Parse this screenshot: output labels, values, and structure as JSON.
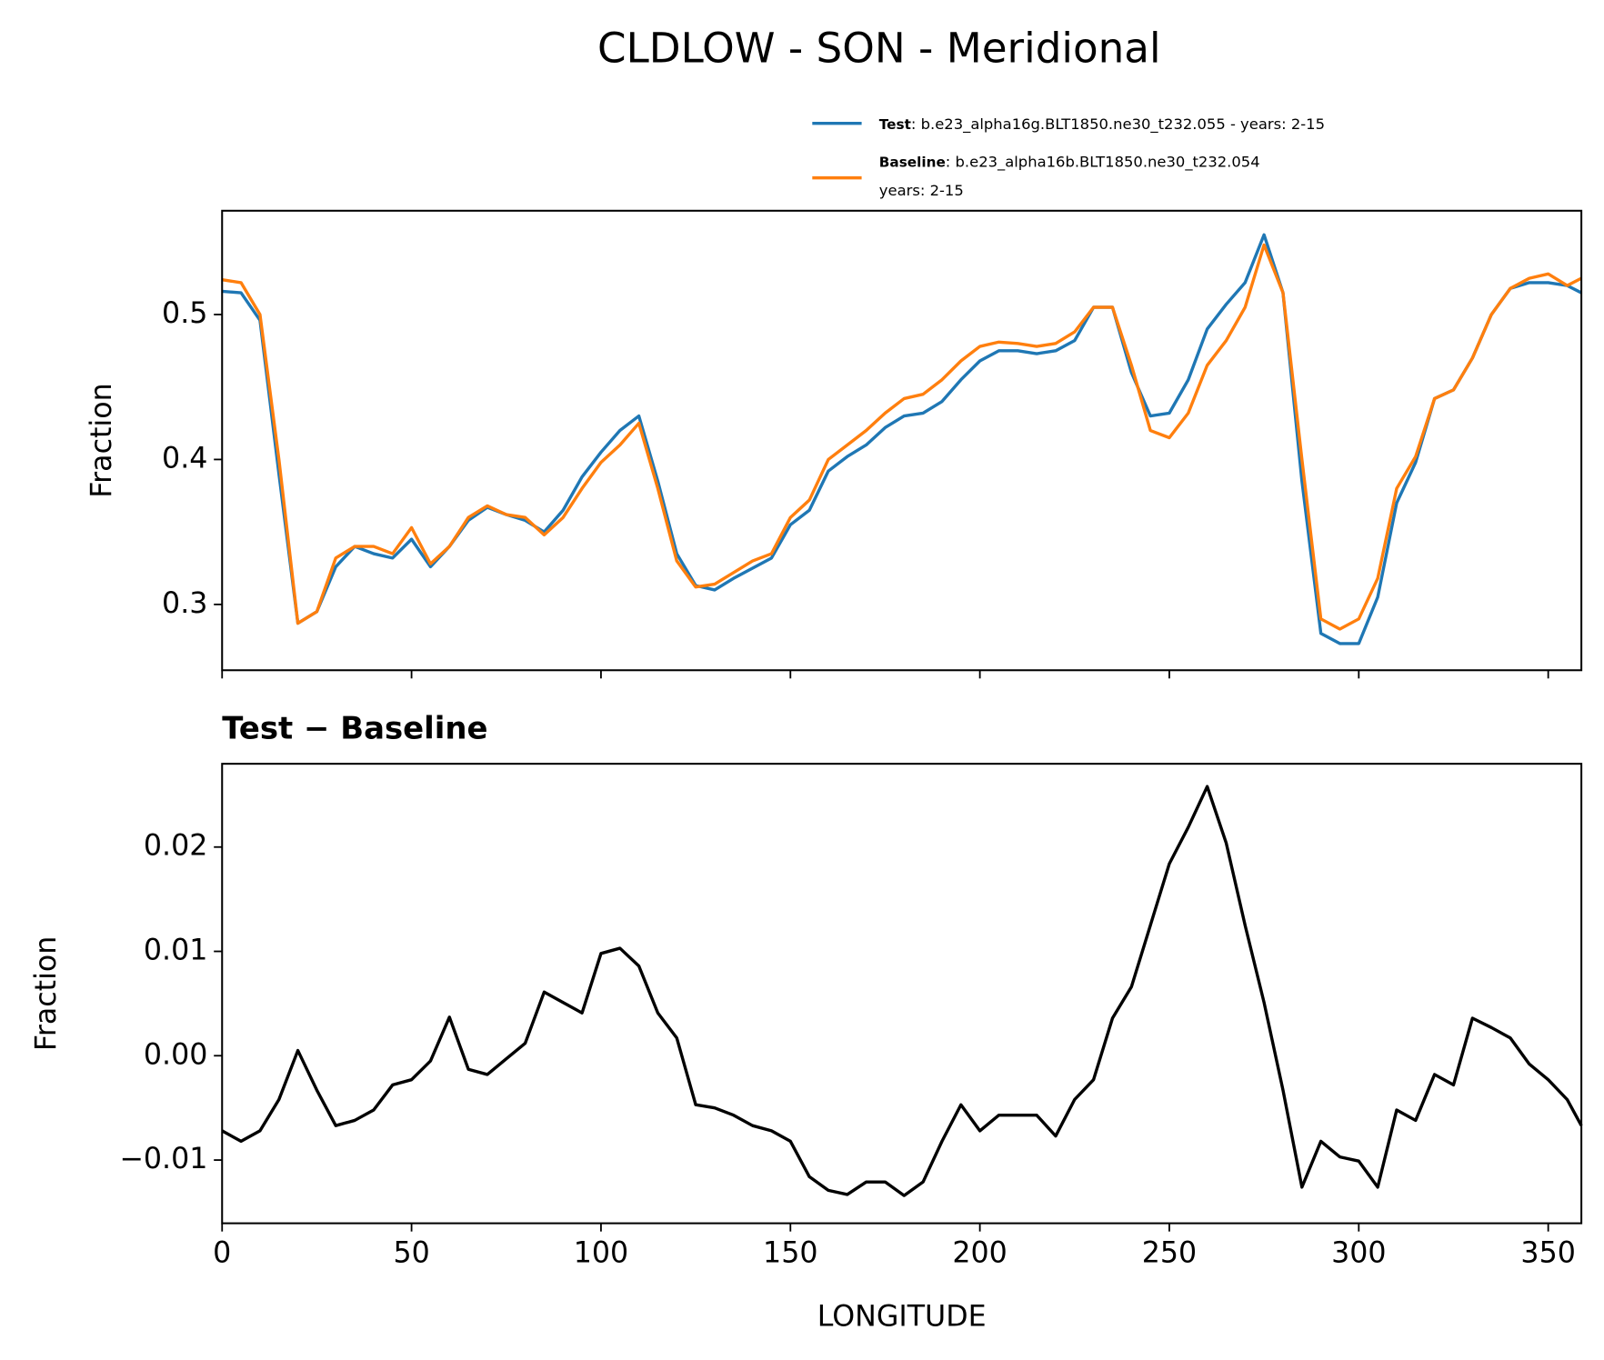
{
  "title": "CLDLOW - SON - Meridional",
  "chart_data": [
    {
      "type": "line",
      "ylabel": "Fraction",
      "x": [
        0,
        5,
        10,
        15,
        20,
        25,
        30,
        35,
        40,
        45,
        50,
        55,
        60,
        65,
        70,
        75,
        80,
        85,
        90,
        95,
        100,
        105,
        110,
        115,
        120,
        125,
        130,
        135,
        140,
        145,
        150,
        155,
        160,
        165,
        170,
        175,
        180,
        185,
        190,
        195,
        200,
        205,
        210,
        215,
        220,
        225,
        230,
        235,
        240,
        245,
        250,
        255,
        260,
        265,
        270,
        275,
        280,
        285,
        290,
        295,
        300,
        305,
        310,
        315,
        320,
        325,
        330,
        335,
        340,
        345,
        350,
        355,
        358.75
      ],
      "series": [
        {
          "name": "Test",
          "description": [
            ": b.e23_alpha16g.BLT1850.ne30_t232.055 - years: 2-15"
          ],
          "color": "#1f77b4",
          "values": [
            0.516,
            0.515,
            0.496,
            0.39,
            0.287,
            0.295,
            0.326,
            0.34,
            0.335,
            0.332,
            0.345,
            0.326,
            0.34,
            0.358,
            0.367,
            0.362,
            0.358,
            0.35,
            0.365,
            0.388,
            0.405,
            0.42,
            0.43,
            0.385,
            0.335,
            0.313,
            0.31,
            0.318,
            0.325,
            0.332,
            0.355,
            0.365,
            0.392,
            0.402,
            0.41,
            0.422,
            0.43,
            0.432,
            0.44,
            0.455,
            0.468,
            0.475,
            0.475,
            0.473,
            0.475,
            0.482,
            0.505,
            0.505,
            0.46,
            0.43,
            0.432,
            0.455,
            0.49,
            0.507,
            0.522,
            0.555,
            0.515,
            0.385,
            0.28,
            0.273,
            0.273,
            0.305,
            0.37,
            0.398,
            0.442,
            0.448,
            0.47,
            0.5,
            0.518,
            0.522,
            0.522,
            0.52,
            0.515
          ]
        },
        {
          "name": "Baseline",
          "description": [
            ": b.e23_alpha16b.BLT1850.ne30_t232.054",
            "years: 2-15"
          ],
          "color": "#ff7f0e",
          "values": [
            0.524,
            0.522,
            0.5,
            0.4,
            0.287,
            0.295,
            0.332,
            0.34,
            0.34,
            0.335,
            0.353,
            0.328,
            0.34,
            0.36,
            0.368,
            0.362,
            0.36,
            0.348,
            0.36,
            0.38,
            0.398,
            0.41,
            0.425,
            0.38,
            0.33,
            0.312,
            0.314,
            0.322,
            0.33,
            0.335,
            0.36,
            0.372,
            0.4,
            0.41,
            0.42,
            0.432,
            0.442,
            0.445,
            0.455,
            0.468,
            0.478,
            0.481,
            0.48,
            0.478,
            0.48,
            0.488,
            0.505,
            0.505,
            0.465,
            0.42,
            0.415,
            0.432,
            0.465,
            0.482,
            0.505,
            0.548,
            0.515,
            0.4,
            0.29,
            0.283,
            0.29,
            0.318,
            0.38,
            0.402,
            0.442,
            0.448,
            0.47,
            0.5,
            0.518,
            0.525,
            0.528,
            0.52,
            0.525
          ]
        }
      ],
      "xlim": [
        0,
        358.75
      ],
      "xticks": [
        0,
        50,
        100,
        150,
        200,
        250,
        300,
        350
      ],
      "ylim": [
        0.2546,
        0.5716
      ],
      "yticks": [
        0.3,
        0.4,
        0.5
      ]
    },
    {
      "type": "line",
      "title": "Test − Baseline",
      "ylabel": "Fraction",
      "xlabel": "LONGITUDE",
      "x": [
        0,
        5,
        10,
        15,
        20,
        25,
        30,
        35,
        40,
        45,
        50,
        55,
        60,
        65,
        70,
        75,
        80,
        85,
        90,
        95,
        100,
        105,
        110,
        115,
        120,
        125,
        130,
        135,
        140,
        145,
        150,
        155,
        160,
        165,
        170,
        175,
        180,
        185,
        190,
        195,
        200,
        205,
        210,
        215,
        220,
        225,
        230,
        235,
        240,
        245,
        250,
        255,
        260,
        265,
        270,
        275,
        280,
        285,
        290,
        295,
        300,
        305,
        310,
        315,
        320,
        325,
        330,
        335,
        340,
        345,
        350,
        355,
        358.75
      ],
      "series": [
        {
          "color": "#000000",
          "values": [
            -0.0072,
            -0.0082,
            -0.0072,
            -0.0042,
            0.0005,
            -0.0033,
            -0.0067,
            -0.0062,
            -0.0052,
            -0.0028,
            -0.0023,
            -0.0005,
            0.0037,
            -0.0013,
            -0.0018,
            -0.0003,
            0.0012,
            0.0061,
            0.0051,
            0.0041,
            0.0098,
            0.0103,
            0.0086,
            0.0041,
            0.0017,
            -0.0047,
            -0.005,
            -0.0057,
            -0.0067,
            -0.0072,
            -0.0082,
            -0.0116,
            -0.0129,
            -0.0133,
            -0.0121,
            -0.0121,
            -0.0134,
            -0.0121,
            -0.0082,
            -0.0047,
            -0.0072,
            -0.0057,
            -0.0057,
            -0.0057,
            -0.0077,
            -0.0042,
            -0.0023,
            0.0036,
            0.0066,
            0.0125,
            0.0184,
            0.0219,
            0.0258,
            0.0204,
            0.0125,
            0.0051,
            -0.0033,
            -0.0126,
            -0.0082,
            -0.0097,
            -0.0101,
            -0.0126,
            -0.0052,
            -0.0062,
            -0.0018,
            -0.0028,
            0.0036,
            0.0027,
            0.0017,
            -0.0008,
            -0.0023,
            -0.0042,
            -0.0067
          ]
        }
      ],
      "xlim": [
        0,
        358.75
      ],
      "xticks": [
        0,
        50,
        100,
        150,
        200,
        250,
        300,
        350
      ],
      "ylim": [
        -0.01606,
        0.02798
      ],
      "yticks": [
        {
          "value": -0.01,
          "label": "−0.01"
        },
        {
          "value": 0,
          "label": "0.00"
        },
        0.01,
        0.02
      ]
    }
  ]
}
